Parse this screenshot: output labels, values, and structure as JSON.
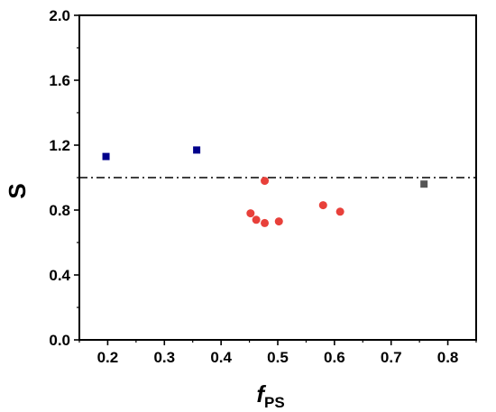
{
  "chart_data": {
    "type": "scatter",
    "title": "",
    "xlabel": "f",
    "xlabel_subscript": "PS",
    "ylabel": "S",
    "xlim": [
      0.15,
      0.85
    ],
    "ylim": [
      0.0,
      2.0
    ],
    "x_ticks": [
      0.2,
      0.3,
      0.4,
      0.5,
      0.6,
      0.7,
      0.8
    ],
    "y_ticks": [
      0.0,
      0.4,
      0.8,
      1.2,
      1.6,
      2.0
    ],
    "x_tick_labels": [
      "0.2",
      "0.3",
      "0.4",
      "0.5",
      "0.6",
      "0.7",
      "0.8"
    ],
    "y_tick_labels": [
      "0.0",
      "0.4",
      "0.8",
      "1.2",
      "1.6",
      "2.0"
    ],
    "grid": false,
    "reference_line": {
      "y": 1.0,
      "style": "dash-dot",
      "color": "#000000"
    },
    "series": [
      {
        "marker": "square",
        "color": "#00008b",
        "points": [
          {
            "x": 0.197,
            "y": 1.13
          },
          {
            "x": 0.357,
            "y": 1.17
          }
        ]
      },
      {
        "marker": "circle",
        "color": "#e8403a",
        "points": [
          {
            "x": 0.452,
            "y": 0.78
          },
          {
            "x": 0.462,
            "y": 0.74
          },
          {
            "x": 0.477,
            "y": 0.72
          },
          {
            "x": 0.477,
            "y": 0.98
          },
          {
            "x": 0.502,
            "y": 0.73
          },
          {
            "x": 0.58,
            "y": 0.83
          },
          {
            "x": 0.61,
            "y": 0.79
          }
        ]
      },
      {
        "marker": "square",
        "color": "#555555",
        "points": [
          {
            "x": 0.758,
            "y": 0.96
          }
        ]
      }
    ]
  }
}
